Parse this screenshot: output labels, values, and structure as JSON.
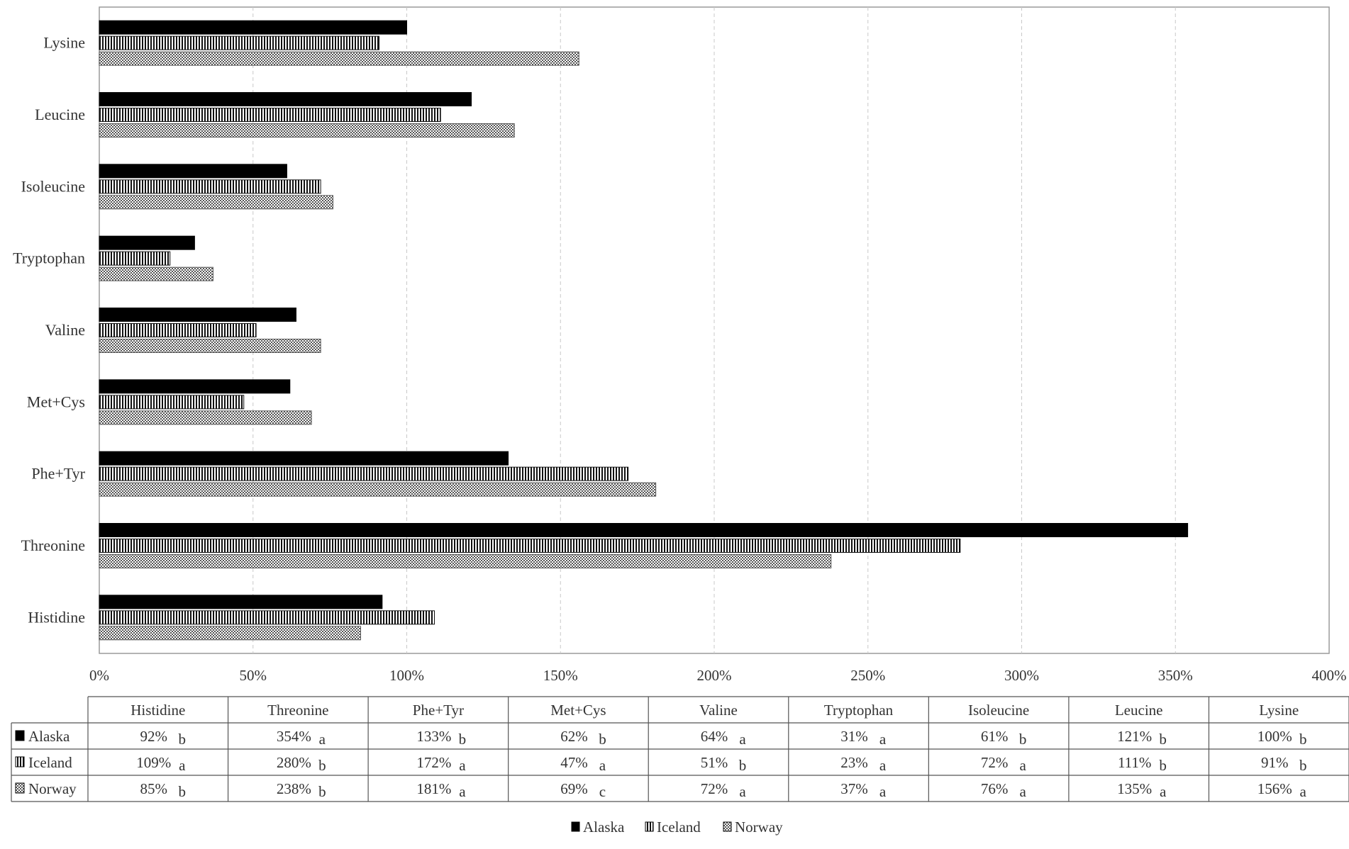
{
  "chart_data": {
    "type": "bar",
    "orientation": "horizontal",
    "categories": [
      "Histidine",
      "Threonine",
      "Phe+Tyr",
      "Met+Cys",
      "Valine",
      "Tryptophan",
      "Isoleucine",
      "Leucine",
      "Lysine"
    ],
    "series": [
      {
        "name": "Alaska",
        "values": [
          92,
          354,
          133,
          62,
          64,
          31,
          61,
          121,
          100
        ],
        "letters": [
          "b",
          "a",
          "b",
          "b",
          "a",
          "a",
          "b",
          "b",
          "b"
        ],
        "pattern": "solid"
      },
      {
        "name": "Iceland",
        "values": [
          109,
          280,
          172,
          47,
          51,
          23,
          72,
          111,
          91
        ],
        "letters": [
          "a",
          "b",
          "a",
          "a",
          "b",
          "a",
          "a",
          "b",
          "b"
        ],
        "pattern": "vertical-stripes"
      },
      {
        "name": "Norway",
        "values": [
          85,
          238,
          181,
          69,
          72,
          37,
          76,
          135,
          156
        ],
        "letters": [
          "b",
          "b",
          "a",
          "c",
          "a",
          "a",
          "a",
          "a",
          "a"
        ],
        "pattern": "dots"
      }
    ],
    "xlim": [
      0,
      400
    ],
    "xticks": [
      "0%",
      "50%",
      "100%",
      "150%",
      "200%",
      "250%",
      "300%",
      "350%",
      "400%"
    ],
    "grid": "vertical-dashed",
    "legend_position": "bottom",
    "data_table": {
      "headers": [
        "Histidine",
        "Threonine",
        "Phe+Tyr",
        "Met+Cys",
        "Valine",
        "Tryptophan",
        "Isoleucine",
        "Leucine",
        "Lysine"
      ],
      "rows": [
        {
          "label": "Alaska",
          "cells": [
            "92%",
            "354%",
            "133%",
            "62%",
            "64%",
            "31%",
            "61%",
            "121%",
            "100%"
          ]
        },
        {
          "label": "Iceland",
          "cells": [
            "109%",
            "280%",
            "172%",
            "47%",
            "51%",
            "23%",
            "72%",
            "111%",
            "91%"
          ]
        },
        {
          "label": "Norway",
          "cells": [
            "85%",
            "238%",
            "181%",
            "69%",
            "72%",
            "37%",
            "76%",
            "135%",
            "156%"
          ]
        }
      ]
    },
    "colors": {
      "alaska": "#000000",
      "stripe": "#111111",
      "dot": "#444444",
      "grid": "#c8c8c8",
      "axis": "#888888"
    }
  }
}
